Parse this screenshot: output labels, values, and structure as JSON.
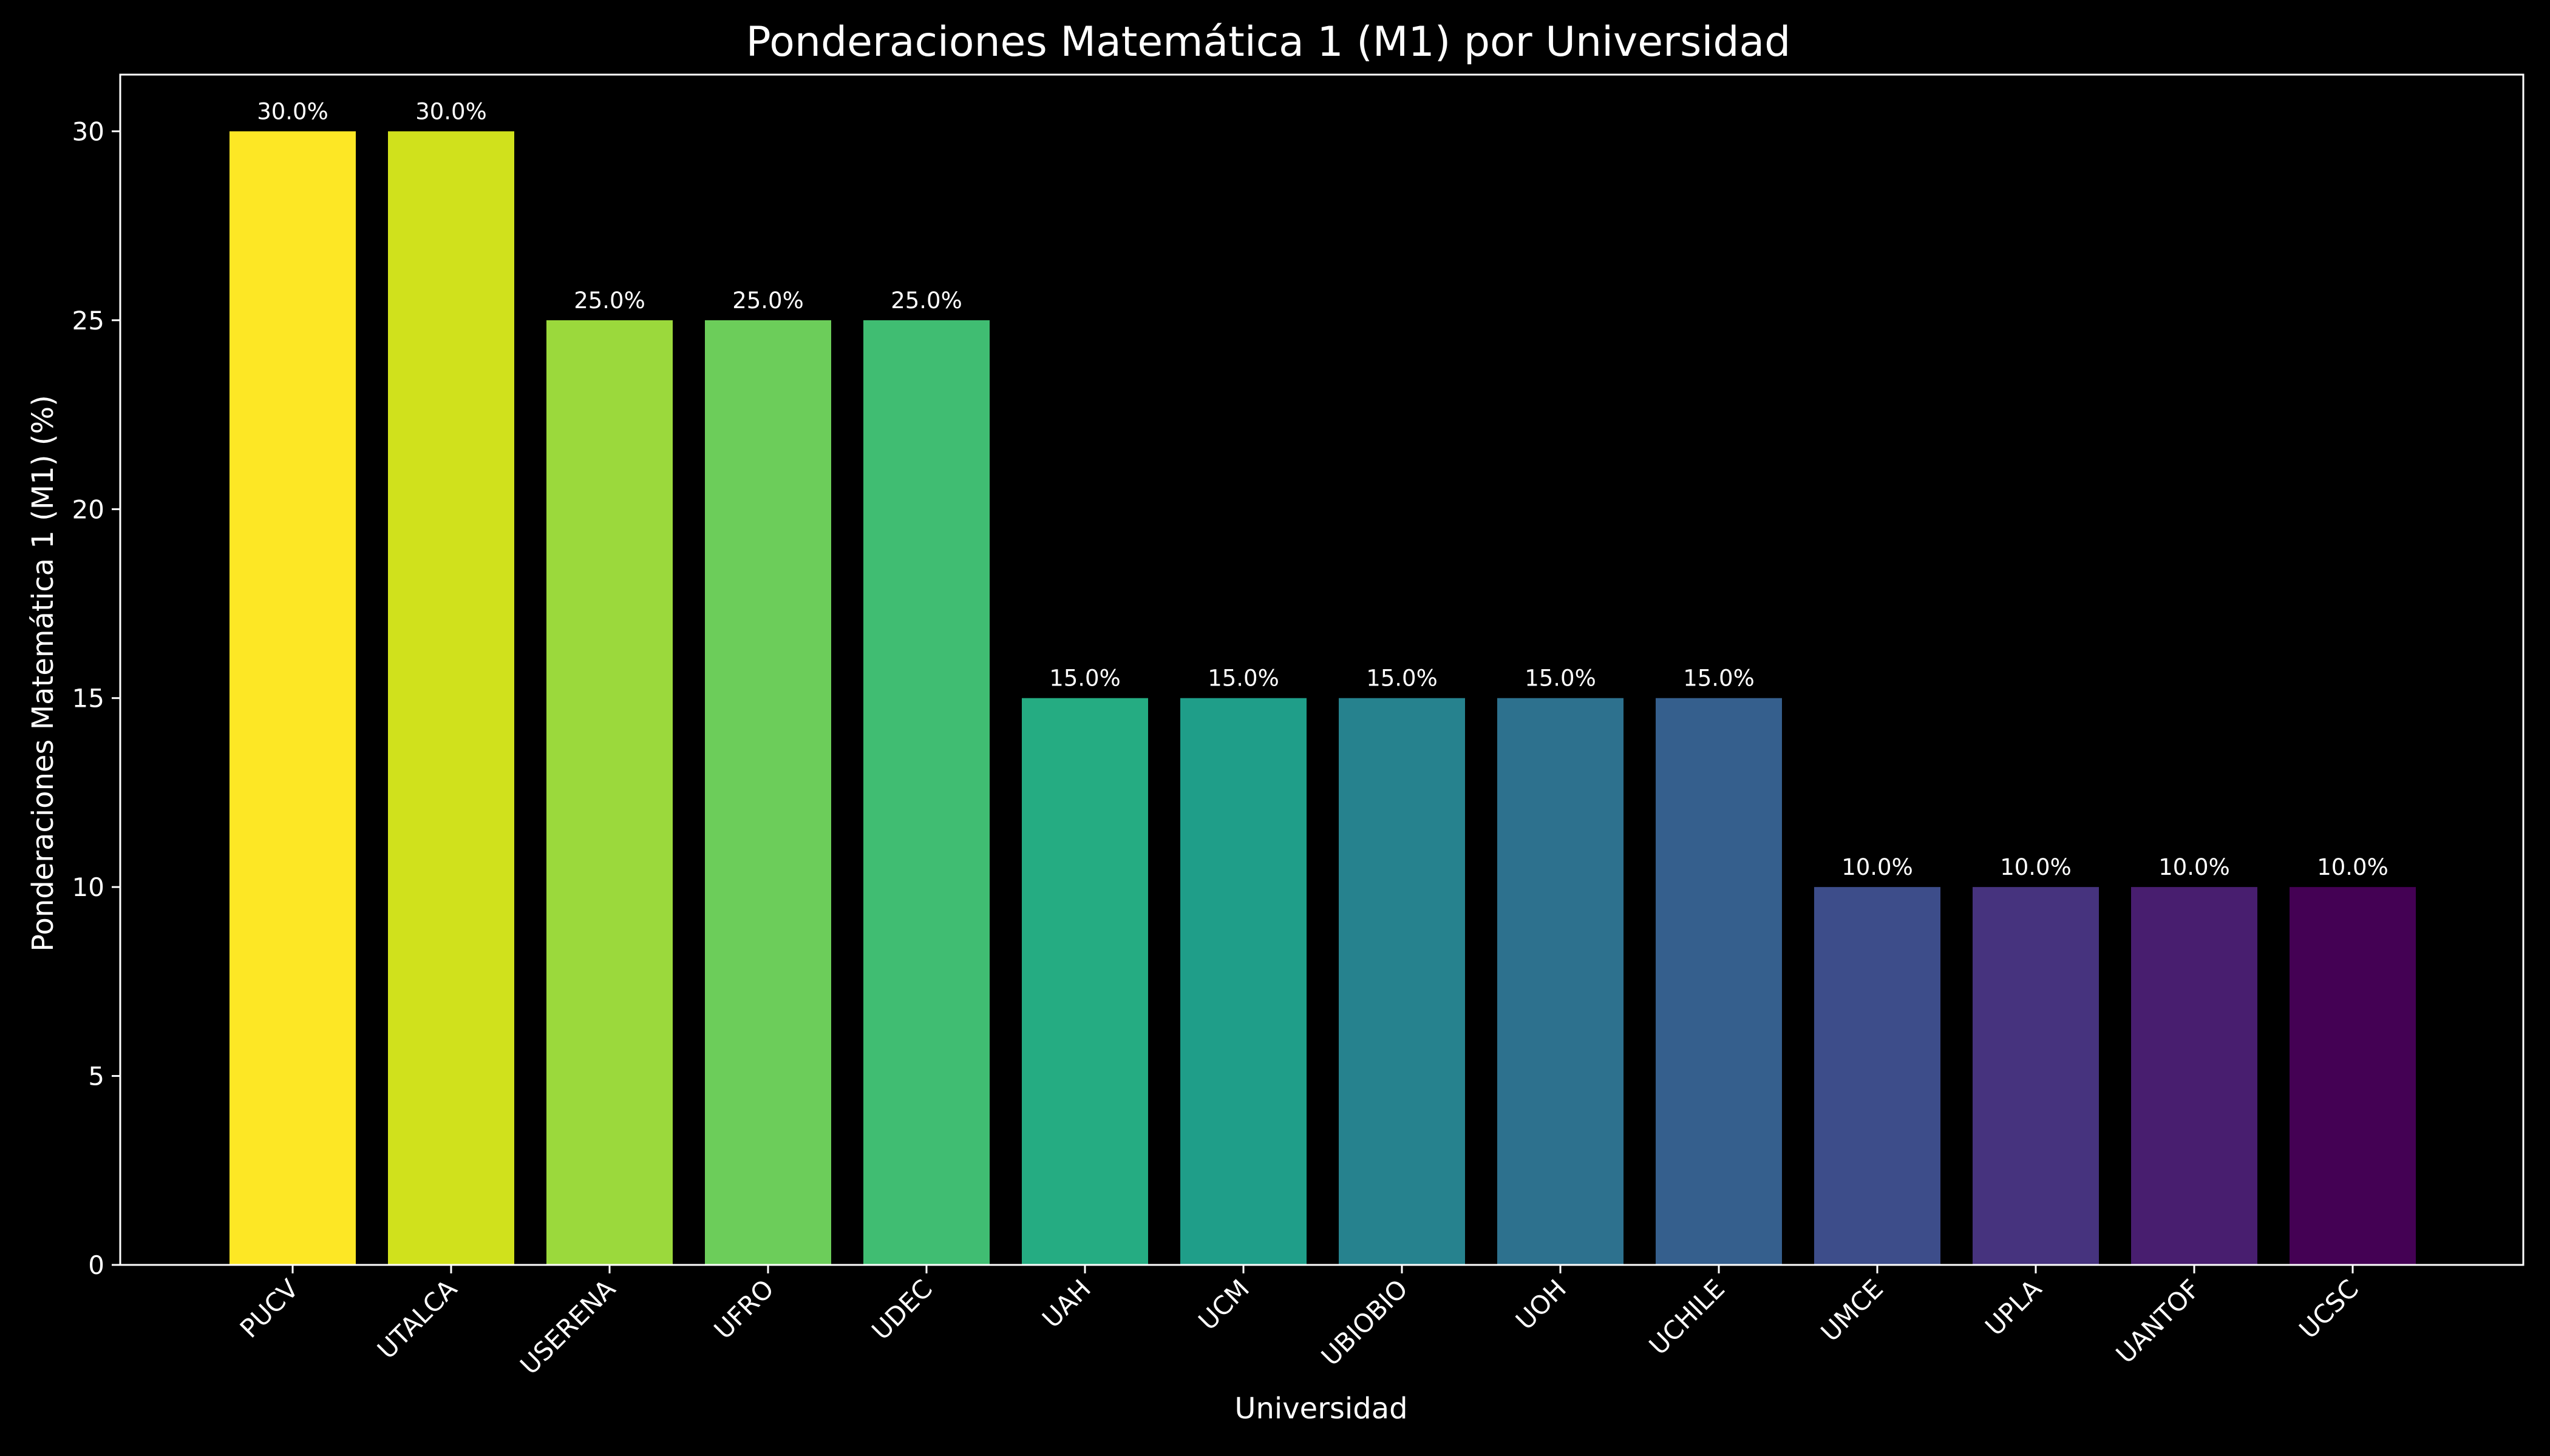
{
  "chart_data": {
    "type": "bar",
    "title": "Ponderaciones Matemática 1 (M1) por Universidad",
    "xlabel": "Universidad",
    "ylabel": "Ponderaciones Matemática 1 (M1) (%)",
    "ylim": [
      0,
      31.5
    ],
    "yticks": [
      0,
      5,
      10,
      15,
      20,
      25,
      30
    ],
    "grid": false,
    "background": "#000000",
    "categories": [
      "PUCV",
      "UTALCA",
      "USERENA",
      "UFRO",
      "UDEC",
      "UAH",
      "UCM",
      "UBIOBIO",
      "UOH",
      "UCHILE",
      "UMCE",
      "UPLA",
      "UANTOF",
      "UCSC"
    ],
    "values": [
      30,
      30,
      25,
      25,
      25,
      15,
      15,
      15,
      15,
      15,
      10,
      10,
      10,
      10
    ],
    "value_labels": [
      "30.0%",
      "30.0%",
      "25.0%",
      "25.0%",
      "25.0%",
      "15.0%",
      "15.0%",
      "15.0%",
      "15.0%",
      "15.0%",
      "10.0%",
      "10.0%",
      "10.0%",
      "10.0%"
    ],
    "colors": [
      "#fde725",
      "#d0e11c",
      "#9bd93c",
      "#6ccd5a",
      "#40bd72",
      "#25ac82",
      "#1f9e89",
      "#26828e",
      "#2d718e",
      "#355f8d",
      "#3d4d8a",
      "#46337e",
      "#481e6f",
      "#440154"
    ]
  }
}
